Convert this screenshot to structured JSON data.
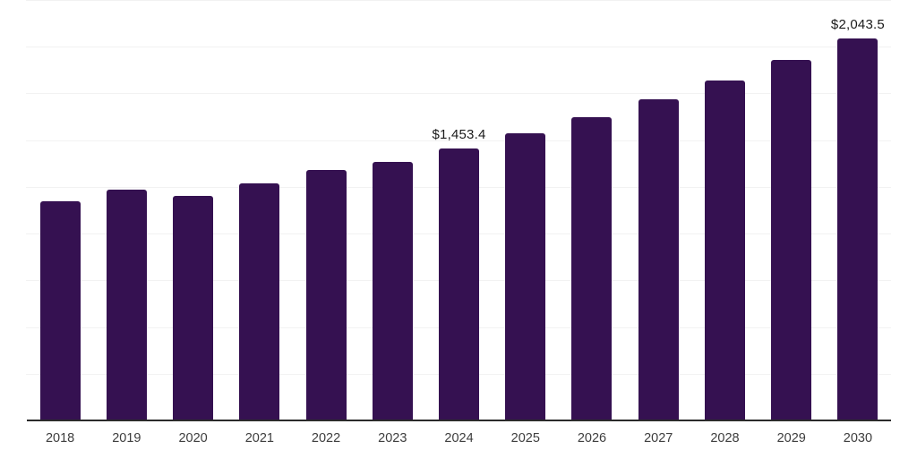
{
  "chart_data": {
    "type": "bar",
    "categories": [
      "2018",
      "2019",
      "2020",
      "2021",
      "2022",
      "2023",
      "2024",
      "2025",
      "2026",
      "2027",
      "2028",
      "2029",
      "2030"
    ],
    "values": [
      1174.1,
      1235.2,
      1203.2,
      1269.9,
      1341.8,
      1381.5,
      1453.4,
      1537.9,
      1622.4,
      1716.9,
      1820.2,
      1930.0,
      2043.5
    ],
    "point_labels": {
      "2024": "$1,453.4",
      "2030": "$2,043.5"
    },
    "title": "",
    "xlabel": "",
    "ylabel": "",
    "ylim": [
      0,
      2250
    ],
    "grid_step": 250,
    "grid": true,
    "legend_position": "none",
    "colors": {
      "bar": "#351151",
      "gridline": "#f2f2f2",
      "axis": "#2b2b2b",
      "tick_label": "#3d3d3d",
      "value_label": "#1a1a1a",
      "background": "#ffffff"
    }
  }
}
